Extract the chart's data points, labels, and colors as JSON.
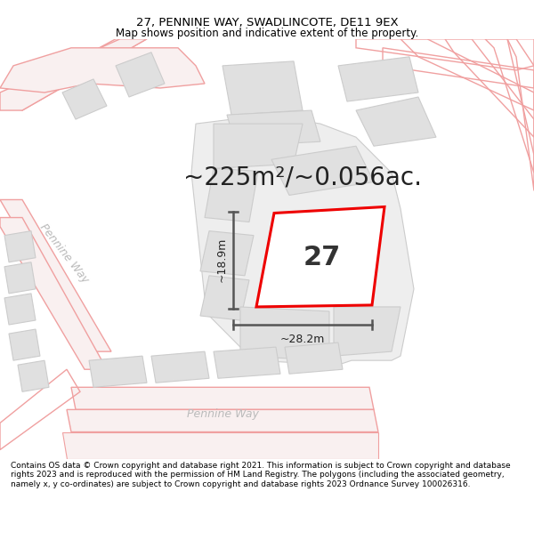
{
  "title": "27, PENNINE WAY, SWADLINCOTE, DE11 9EX",
  "subtitle": "Map shows position and indicative extent of the property.",
  "area_text": "~225m²/~0.056ac.",
  "width_label": "~28.2m",
  "height_label": "~18.9m",
  "house_number": "27",
  "footer": "Contains OS data © Crown copyright and database right 2021. This information is subject to Crown copyright and database rights 2023 and is reproduced with the permission of HM Land Registry. The polygons (including the associated geometry, namely x, y co-ordinates) are subject to Crown copyright and database rights 2023 Ordnance Survey 100026316.",
  "bg_color": "#ffffff",
  "map_bg": "#ffffff",
  "road_color": "#f0a0a0",
  "road_fill": "#f9f0f0",
  "building_fill": "#e0e0e0",
  "building_edge": "#cccccc",
  "highlight_color": "#ee0000",
  "dim_color": "#555555",
  "street_label_color": "#bbbbbb",
  "title_color": "#000000",
  "footer_color": "#000000",
  "title_fontsize": 9.5,
  "subtitle_fontsize": 8.5,
  "area_fontsize": 20,
  "number_fontsize": 22,
  "dim_fontsize": 9,
  "street_fontsize": 9
}
